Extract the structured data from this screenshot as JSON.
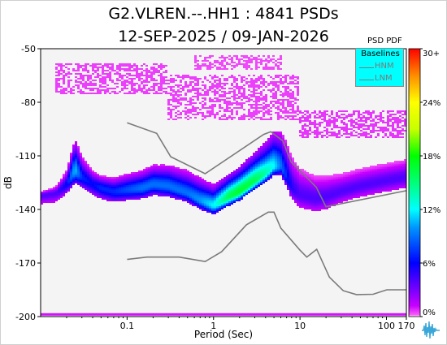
{
  "title": {
    "line1": "G2.VLREN.--.HH1 : 4841 PSDs",
    "line2": "12-SEP-2025 / 09-JAN-2026"
  },
  "chart_data": {
    "type": "heatmap",
    "title": "G2.VLREN.--.HH1 : 4841 PSDs",
    "subtitle": "12-SEP-2025 / 09-JAN-2026",
    "xlabel": "Period (Sec)",
    "ylabel": "dB",
    "x_scale": "log",
    "xlim": [
      0.01,
      170
    ],
    "ylim": [
      -200,
      -50
    ],
    "x_ticks": [
      0.1,
      1,
      10,
      100,
      170
    ],
    "x_tick_labels": [
      "0.1",
      "1",
      "10",
      "100",
      "170"
    ],
    "y_ticks": [
      -50,
      -80,
      -110,
      -140,
      -170,
      -200
    ],
    "y_tick_labels": [
      "-50",
      "-80",
      "-110",
      "-140",
      "-170",
      "-200"
    ],
    "colorbar": {
      "title": "PSD PDF",
      "range": [
        0,
        30
      ],
      "ticks": [
        "0%",
        "6%",
        "12%",
        "18%",
        "24%",
        "30+"
      ]
    },
    "legend": {
      "title": "Baselines",
      "placement": "top-right",
      "entries": [
        "HNM",
        "LNM"
      ]
    },
    "mode_curve": {
      "name": "mode",
      "x": [
        0.01,
        0.015,
        0.02,
        0.025,
        0.03,
        0.04,
        0.05,
        0.07,
        0.1,
        0.15,
        0.2,
        0.3,
        0.5,
        0.7,
        1,
        1.5,
        2,
        3,
        4,
        5,
        6,
        7,
        8,
        10,
        15,
        20,
        30,
        50,
        100,
        170
      ],
      "y": [
        -132,
        -131,
        -126,
        -118,
        -122,
        -126,
        -128,
        -130,
        -129,
        -128,
        -126,
        -127,
        -131,
        -135,
        -138,
        -133,
        -130,
        -124,
        -120,
        -116,
        -116,
        -122,
        -128,
        -132,
        -134,
        -133,
        -130,
        -127,
        -124,
        -122
      ]
    },
    "spread_upper_db": [
      2,
      4,
      8,
      18,
      12,
      8,
      7,
      8,
      9,
      10,
      11,
      12,
      13,
      13,
      12,
      13,
      14,
      16,
      18,
      20,
      20,
      20,
      18,
      15,
      13,
      12,
      10,
      10,
      10,
      10
    ],
    "spread_lower_db": [
      5,
      5,
      5,
      7,
      6,
      6,
      6,
      6,
      6,
      6,
      6,
      6,
      5,
      5,
      5,
      5,
      5,
      5,
      5,
      5,
      5,
      5,
      6,
      7,
      7,
      7,
      6,
      6,
      6,
      6
    ],
    "peak_percent": [
      4,
      4,
      6,
      11,
      7,
      6,
      7,
      7,
      8,
      9,
      9,
      9,
      9,
      10,
      12,
      16,
      17,
      16,
      14,
      12,
      9,
      7,
      5,
      4,
      4,
      4,
      4,
      4,
      4,
      4
    ],
    "high_noise_bands": [
      {
        "x": [
          0.015,
          0.3
        ],
        "y": [
          -75,
          -58
        ],
        "percent": 0.5
      },
      {
        "x": [
          0.3,
          10
        ],
        "y": [
          -90,
          -65
        ],
        "percent": 0.5
      },
      {
        "x": [
          0.6,
          6
        ],
        "y": [
          -62,
          -54
        ],
        "percent": 0.4
      },
      {
        "x": [
          10,
          170
        ],
        "y": [
          -100,
          -85
        ],
        "percent": 0.6
      }
    ],
    "floor_band": {
      "y": -199,
      "percent": 1
    },
    "series": [
      {
        "name": "HNM",
        "x": [
          0.1,
          0.22,
          0.32,
          0.8,
          3.8,
          4.6,
          6.3,
          7.9,
          15.4,
          20,
          170
        ],
        "y": [
          -91.5,
          -97.4,
          -110.5,
          -120,
          -98,
          -96.5,
          -101.5,
          -113.5,
          -127.5,
          -138.5,
          -129.5
        ]
      },
      {
        "name": "LNM",
        "x": [
          0.1,
          0.17,
          0.4,
          0.8,
          1.24,
          2.4,
          4.3,
          5,
          6,
          10,
          12,
          15.6,
          21.9,
          31.6,
          45,
          70,
          101,
          154,
          170
        ],
        "y": [
          -168,
          -166.7,
          -166.7,
          -169.2,
          -163.7,
          -148.6,
          -141.5,
          -141.5,
          -150.4,
          -162.8,
          -166.7,
          -162.3,
          -177.9,
          -185.5,
          -187.7,
          -187.5,
          -185,
          -185,
          -185
        ]
      }
    ]
  }
}
